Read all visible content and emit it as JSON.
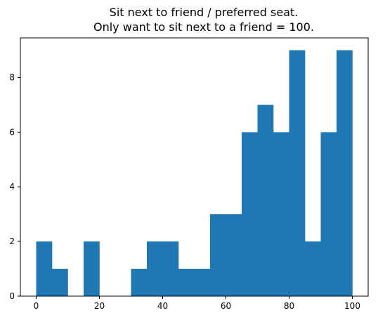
{
  "chart_data": {
    "type": "bar",
    "title_lines": [
      "Sit next to friend / preferred seat.",
      "Only want to sit next to a friend = 100."
    ],
    "xlabel": "",
    "ylabel": "",
    "bin_edges": [
      0,
      5,
      10,
      15,
      20,
      25,
      30,
      35,
      40,
      45,
      50,
      55,
      60,
      65,
      70,
      75,
      80,
      85,
      90,
      95,
      100
    ],
    "values": [
      2,
      1,
      0,
      2,
      0,
      0,
      1,
      2,
      2,
      1,
      1,
      3,
      3,
      6,
      7,
      6,
      9,
      2,
      6,
      9
    ],
    "xlim": [
      -5,
      105
    ],
    "ylim": [
      0,
      9.45
    ],
    "x_ticks": [
      "0",
      "20",
      "40",
      "60",
      "80",
      "100"
    ],
    "y_ticks": [
      "0",
      "2",
      "4",
      "6",
      "8"
    ],
    "bar_color": "#1f77b4",
    "grid": false,
    "legend": "none"
  }
}
